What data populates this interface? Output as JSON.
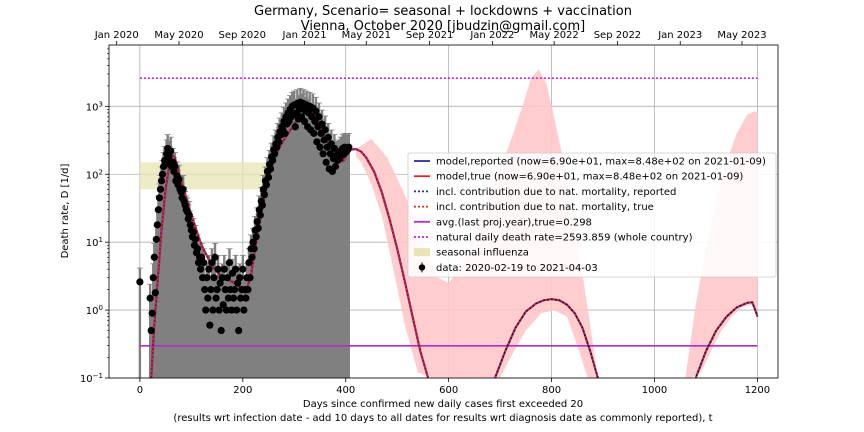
{
  "chart_data": {
    "type": "line",
    "title": "Germany, Scenario= seasonal + lockdowns + vaccination",
    "subtitle": "Vienna, October 2020 [jbudzin@gmail.com]",
    "xlabel": "Days since confirmed new daily cases first exceeded 20",
    "xlabel2": "(results wrt infection date - add 10 days to all dates for results wrt diagnosis date as commonly reported), t",
    "ylabel": "Death rate, D [1/d]",
    "y_scale": "log",
    "xlim": [
      -60,
      1240
    ],
    "ylim": [
      0.1,
      8000
    ],
    "grid": true,
    "legend_position": "center-right",
    "x_ticks": [
      0,
      200,
      400,
      600,
      800,
      1000,
      1200
    ],
    "y_ticks": [
      {
        "value": 0.1,
        "base": "10",
        "exp": "−1"
      },
      {
        "value": 1,
        "base": "10",
        "exp": "0"
      },
      {
        "value": 10,
        "base": "10",
        "exp": "1"
      },
      {
        "value": 100,
        "base": "10",
        "exp": "2"
      },
      {
        "value": 1000,
        "base": "10",
        "exp": "3"
      }
    ],
    "top_axis_ticks": [
      {
        "day": -45,
        "label": "Jan 2020"
      },
      {
        "day": 76,
        "label": "May 2020"
      },
      {
        "day": 199,
        "label": "Sep 2020"
      },
      {
        "day": 320,
        "label": "Jan 2021"
      },
      {
        "day": 440,
        "label": "May 2021"
      },
      {
        "day": 563,
        "label": "Sep 2021"
      },
      {
        "day": 685,
        "label": "Jan 2022"
      },
      {
        "day": 805,
        "label": "May 2022"
      },
      {
        "day": 928,
        "label": "Sep 2022"
      },
      {
        "day": 1050,
        "label": "Jan 2023"
      },
      {
        "day": 1170,
        "label": "May 2023"
      }
    ],
    "legend": [
      {
        "key": "reported",
        "kind": "line",
        "color": "#2c2ca6",
        "dash": "",
        "label": "model,reported (now=6.90e+01, max=8.48e+02 on 2021-01-09)"
      },
      {
        "key": "true",
        "kind": "line",
        "color": "#e8242a",
        "dash": "",
        "label": "model,true (now=6.90e+01, max=8.48e+02 on 2021-01-09)"
      },
      {
        "key": "nat_reported",
        "kind": "line",
        "color": "#2c2ca6",
        "dash": "2,2",
        "label": "incl. contribution due to nat. mortality, reported"
      },
      {
        "key": "nat_true",
        "kind": "line",
        "color": "#d03020",
        "dash": "2,2",
        "label": "incl. contribution due to nat. mortality, true"
      },
      {
        "key": "avg",
        "kind": "line",
        "color": "#b02ccc",
        "dash": "",
        "label": "avg.(last proj.year),true=0.298"
      },
      {
        "key": "natural",
        "kind": "line",
        "color": "#c020d8",
        "dash": "2,2",
        "label": "natural daily death rate=2593.859 (whole country)"
      },
      {
        "key": "flu",
        "kind": "patch",
        "color": "#e8e4b4",
        "dash": "",
        "label": "seasonal influenza"
      },
      {
        "key": "data",
        "kind": "errpoint",
        "color": "#000000",
        "dash": "",
        "label": "data: 2020-02-19 to 2021-04-03"
      }
    ],
    "colors": {
      "natural": "#c020d8",
      "avg": "#b02ccc",
      "model_true": "#e8242a",
      "model_reported": "#2c2ca6",
      "uncertainty_band": "#ffc8c8",
      "flu_band": "#e8e4b4",
      "data_errorbar": "#808080",
      "data_point": "#000000"
    },
    "natural_daily_death_rate": 2593.859,
    "avg_last_year_true": 0.298,
    "seasonal_influenza": {
      "x_range": [
        0,
        400
      ],
      "y_range": [
        60,
        150
      ]
    },
    "model_true": [
      [
        22,
        0.1
      ],
      [
        28,
        0.6
      ],
      [
        35,
        3
      ],
      [
        42,
        15
      ],
      [
        50,
        60
      ],
      [
        58,
        150
      ],
      [
        62,
        190
      ],
      [
        68,
        175
      ],
      [
        75,
        110
      ],
      [
        85,
        60
      ],
      [
        100,
        25
      ],
      [
        120,
        9
      ],
      [
        140,
        4.5
      ],
      [
        160,
        3
      ],
      [
        180,
        2.6
      ],
      [
        195,
        2.2
      ],
      [
        205,
        1.8
      ],
      [
        215,
        3
      ],
      [
        225,
        9
      ],
      [
        235,
        25
      ],
      [
        245,
        60
      ],
      [
        255,
        120
      ],
      [
        265,
        200
      ],
      [
        275,
        280
      ],
      [
        290,
        420
      ],
      [
        305,
        620
      ],
      [
        320,
        800
      ],
      [
        332,
        848
      ],
      [
        342,
        720
      ],
      [
        352,
        500
      ],
      [
        362,
        320
      ],
      [
        372,
        220
      ],
      [
        380,
        170
      ],
      [
        388,
        150
      ],
      [
        396,
        160
      ],
      [
        403,
        200
      ],
      [
        410,
        230
      ],
      [
        420,
        235
      ],
      [
        430,
        215
      ],
      [
        440,
        175
      ],
      [
        455,
        110
      ],
      [
        470,
        55
      ],
      [
        485,
        22
      ],
      [
        500,
        8
      ],
      [
        515,
        2.6
      ],
      [
        530,
        0.8
      ],
      [
        545,
        0.25
      ],
      [
        560,
        0.1
      ]
    ],
    "model_hump2": [
      [
        690,
        0.1
      ],
      [
        710,
        0.25
      ],
      [
        730,
        0.55
      ],
      [
        750,
        0.95
      ],
      [
        770,
        1.25
      ],
      [
        785,
        1.4
      ],
      [
        800,
        1.45
      ],
      [
        815,
        1.4
      ],
      [
        830,
        1.2
      ],
      [
        845,
        0.9
      ],
      [
        860,
        0.55
      ],
      [
        875,
        0.25
      ],
      [
        890,
        0.1
      ]
    ],
    "model_hump3": [
      [
        1080,
        0.1
      ],
      [
        1100,
        0.25
      ],
      [
        1120,
        0.5
      ],
      [
        1140,
        0.8
      ],
      [
        1160,
        1.1
      ],
      [
        1180,
        1.28
      ],
      [
        1190,
        1.3
      ],
      [
        1198,
        0.9
      ],
      [
        1200,
        0.8
      ]
    ],
    "uncertainty_band": [
      [
        420,
        235
      ],
      [
        450,
        330
      ],
      [
        480,
        180
      ],
      [
        510,
        60
      ],
      [
        540,
        18
      ],
      [
        560,
        6
      ],
      [
        580,
        3
      ],
      [
        600,
        2.5
      ],
      [
        630,
        5
      ],
      [
        660,
        20
      ],
      [
        690,
        80
      ],
      [
        720,
        300
      ],
      [
        745,
        1100
      ],
      [
        760,
        2600
      ],
      [
        775,
        3500
      ],
      [
        790,
        2200
      ],
      [
        805,
        700
      ],
      [
        830,
        90
      ],
      [
        855,
        6
      ],
      [
        875,
        0.6
      ],
      [
        890,
        0.1
      ],
      [
        890,
        0.1
      ],
      [
        870,
        0.1
      ],
      [
        850,
        0.3
      ],
      [
        830,
        0.8
      ],
      [
        805,
        1.0
      ],
      [
        780,
        0.9
      ],
      [
        750,
        0.5
      ],
      [
        720,
        0.2
      ],
      [
        700,
        0.1
      ],
      [
        640,
        0.1
      ],
      [
        600,
        0.1
      ],
      [
        570,
        0.1
      ],
      [
        540,
        0.12
      ],
      [
        515,
        0.6
      ],
      [
        490,
        5
      ],
      [
        470,
        25
      ],
      [
        450,
        70
      ],
      [
        430,
        150
      ],
      [
        420,
        180
      ]
    ],
    "uncertainty_band_2": [
      [
        1060,
        0.1
      ],
      [
        1080,
        1.2
      ],
      [
        1100,
        8
      ],
      [
        1120,
        40
      ],
      [
        1140,
        150
      ],
      [
        1160,
        400
      ],
      [
        1180,
        750
      ],
      [
        1195,
        850
      ],
      [
        1200,
        800
      ],
      [
        1200,
        0.8
      ],
      [
        1190,
        1.2
      ],
      [
        1170,
        1.1
      ],
      [
        1150,
        0.8
      ],
      [
        1130,
        0.5
      ],
      [
        1110,
        0.25
      ],
      [
        1090,
        0.12
      ],
      [
        1070,
        0.1
      ]
    ],
    "data_points": [
      [
        0,
        2.6
      ],
      [
        20,
        1.5
      ],
      [
        22,
        0.5
      ],
      [
        24,
        0.9
      ],
      [
        26,
        3
      ],
      [
        28,
        6
      ],
      [
        30,
        1.8
      ],
      [
        32,
        11
      ],
      [
        34,
        18
      ],
      [
        36,
        30
      ],
      [
        38,
        45
      ],
      [
        40,
        60
      ],
      [
        42,
        80
      ],
      [
        44,
        100
      ],
      [
        46,
        130
      ],
      [
        48,
        160
      ],
      [
        50,
        140
      ],
      [
        52,
        200
      ],
      [
        54,
        240
      ],
      [
        56,
        190
      ],
      [
        58,
        160
      ],
      [
        60,
        220
      ],
      [
        62,
        130
      ],
      [
        64,
        150
      ],
      [
        66,
        110
      ],
      [
        68,
        130
      ],
      [
        70,
        80
      ],
      [
        72,
        95
      ],
      [
        74,
        70
      ],
      [
        76,
        85
      ],
      [
        78,
        60
      ],
      [
        80,
        55
      ],
      [
        82,
        45
      ],
      [
        84,
        60
      ],
      [
        86,
        40
      ],
      [
        88,
        35
      ],
      [
        90,
        30
      ],
      [
        92,
        28
      ],
      [
        94,
        22
      ],
      [
        96,
        25
      ],
      [
        98,
        18
      ],
      [
        100,
        15
      ],
      [
        102,
        12
      ],
      [
        104,
        14
      ],
      [
        106,
        9
      ],
      [
        108,
        11
      ],
      [
        110,
        7
      ],
      [
        112,
        8
      ],
      [
        114,
        5
      ],
      [
        116,
        6
      ],
      [
        118,
        4
      ],
      [
        120,
        6
      ],
      [
        122,
        3
      ],
      [
        124,
        5
      ],
      [
        126,
        2
      ],
      [
        128,
        1
      ],
      [
        130,
        3
      ],
      [
        132,
        1.5
      ],
      [
        134,
        4
      ],
      [
        136,
        0.6
      ],
      [
        138,
        2
      ],
      [
        140,
        5
      ],
      [
        142,
        1
      ],
      [
        144,
        3
      ],
      [
        146,
        6
      ],
      [
        148,
        1.5
      ],
      [
        150,
        2
      ],
      [
        152,
        4
      ],
      [
        154,
        1
      ],
      [
        156,
        2.5
      ],
      [
        158,
        0.5
      ],
      [
        160,
        3
      ],
      [
        162,
        1.2
      ],
      [
        164,
        4
      ],
      [
        166,
        2
      ],
      [
        168,
        1
      ],
      [
        170,
        3
      ],
      [
        172,
        1.5
      ],
      [
        174,
        5
      ],
      [
        176,
        2
      ],
      [
        178,
        1
      ],
      [
        180,
        3.5
      ],
      [
        182,
        1.5
      ],
      [
        184,
        2
      ],
      [
        186,
        4
      ],
      [
        188,
        1
      ],
      [
        190,
        2.5
      ],
      [
        192,
        0.5
      ],
      [
        194,
        3
      ],
      [
        196,
        1.5
      ],
      [
        198,
        2
      ],
      [
        200,
        4
      ],
      [
        202,
        1
      ],
      [
        204,
        2
      ],
      [
        206,
        1.5
      ],
      [
        208,
        3
      ],
      [
        210,
        2
      ],
      [
        212,
        5
      ],
      [
        214,
        3
      ],
      [
        216,
        8
      ],
      [
        218,
        6
      ],
      [
        220,
        10
      ],
      [
        222,
        8
      ],
      [
        224,
        15
      ],
      [
        226,
        12
      ],
      [
        228,
        20
      ],
      [
        230,
        16
      ],
      [
        232,
        30
      ],
      [
        234,
        25
      ],
      [
        236,
        40
      ],
      [
        238,
        35
      ],
      [
        240,
        60
      ],
      [
        242,
        50
      ],
      [
        244,
        80
      ],
      [
        246,
        70
      ],
      [
        248,
        110
      ],
      [
        250,
        90
      ],
      [
        252,
        140
      ],
      [
        254,
        120
      ],
      [
        256,
        180
      ],
      [
        258,
        160
      ],
      [
        260,
        230
      ],
      [
        262,
        200
      ],
      [
        264,
        280
      ],
      [
        266,
        250
      ],
      [
        268,
        350
      ],
      [
        270,
        300
      ],
      [
        272,
        420
      ],
      [
        274,
        380
      ],
      [
        276,
        500
      ],
      [
        278,
        450
      ],
      [
        280,
        600
      ],
      [
        282,
        400
      ],
      [
        284,
        700
      ],
      [
        286,
        550
      ],
      [
        288,
        800
      ],
      [
        290,
        600
      ],
      [
        292,
        900
      ],
      [
        294,
        700
      ],
      [
        296,
        1000
      ],
      [
        298,
        750
      ],
      [
        300,
        1050
      ],
      [
        302,
        500
      ],
      [
        304,
        800
      ],
      [
        306,
        1100
      ],
      [
        308,
        650
      ],
      [
        310,
        900
      ],
      [
        312,
        1150
      ],
      [
        314,
        700
      ],
      [
        316,
        950
      ],
      [
        318,
        1100
      ],
      [
        320,
        600
      ],
      [
        322,
        850
      ],
      [
        324,
        1050
      ],
      [
        326,
        500
      ],
      [
        328,
        800
      ],
      [
        330,
        1000
      ],
      [
        332,
        450
      ],
      [
        334,
        700
      ],
      [
        336,
        950
      ],
      [
        338,
        400
      ],
      [
        340,
        600
      ],
      [
        342,
        850
      ],
      [
        344,
        300
      ],
      [
        346,
        500
      ],
      [
        348,
        700
      ],
      [
        350,
        250
      ],
      [
        352,
        400
      ],
      [
        354,
        550
      ],
      [
        356,
        200
      ],
      [
        358,
        320
      ],
      [
        360,
        450
      ],
      [
        362,
        150
      ],
      [
        364,
        250
      ],
      [
        366,
        350
      ],
      [
        368,
        120
      ],
      [
        370,
        200
      ],
      [
        372,
        280
      ],
      [
        374,
        110
      ],
      [
        376,
        170
      ],
      [
        378,
        240
      ],
      [
        380,
        130
      ],
      [
        382,
        190
      ],
      [
        384,
        160
      ],
      [
        386,
        200
      ],
      [
        388,
        170
      ],
      [
        390,
        220
      ],
      [
        392,
        190
      ],
      [
        394,
        240
      ],
      [
        396,
        200
      ],
      [
        398,
        250
      ],
      [
        400,
        210
      ],
      [
        402,
        240
      ],
      [
        404,
        230
      ],
      [
        406,
        250
      ]
    ]
  }
}
